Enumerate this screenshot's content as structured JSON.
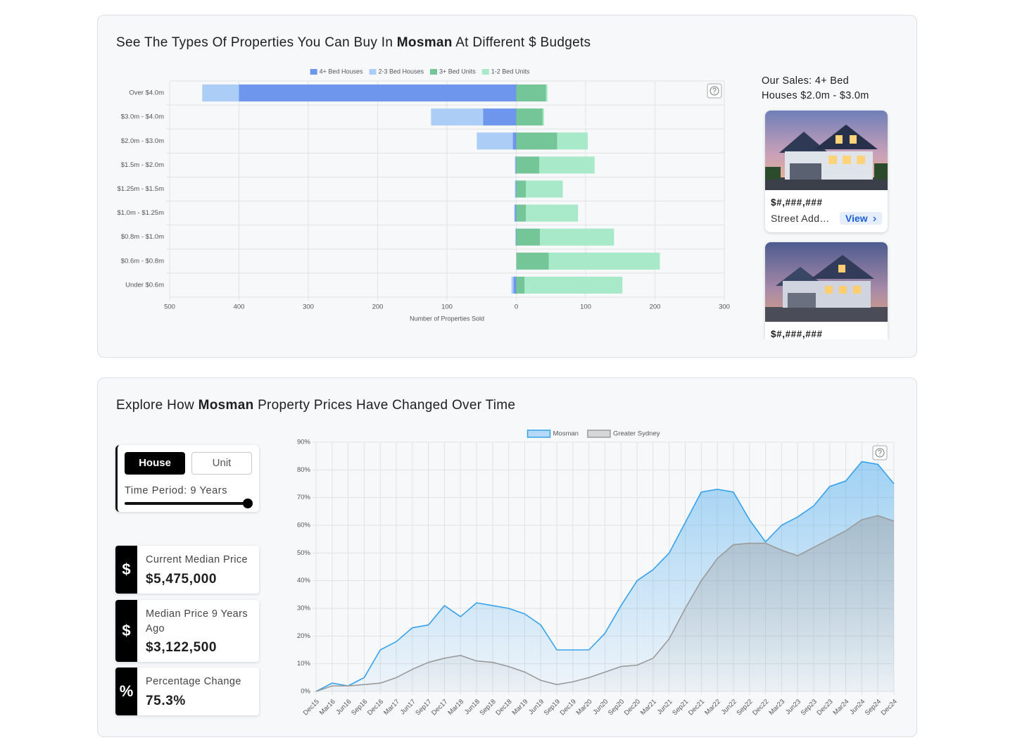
{
  "section_budgets": {
    "title_prefix": "See The Types Of Properties You Can Buy In",
    "title_location": "Mosman",
    "title_suffix": "At Different $ Budgets"
  },
  "sales_panel": {
    "heading": "Our Sales: 4+ Bed Houses $2.0m - $3.0m",
    "listings": [
      {
        "price": "$#,###,###",
        "address": "Street Add…",
        "action": "View"
      },
      {
        "price": "$#,###,###"
      }
    ]
  },
  "section_prices": {
    "title_prefix": "Explore How",
    "title_location": "Mosman",
    "title_suffix": "Property Prices Have Changed Over Time"
  },
  "controls": {
    "buttons": [
      "House",
      "Unit"
    ],
    "time_period": "Time Period: 9 Years"
  },
  "stats": [
    {
      "icon": "$",
      "label": "Current Median Price",
      "value": "$5,475,000"
    },
    {
      "icon": "$",
      "label": "Median Price 9 Years Ago",
      "value": "$3,122,500"
    },
    {
      "icon": "%",
      "label": "Percentage Change",
      "value": "75.3%"
    }
  ],
  "chart_data": [
    {
      "type": "bar",
      "orientation": "horizontal",
      "stacked": true,
      "legend": "top",
      "grid": true,
      "categories": [
        "Over $4.0m",
        "$3.0m - $4.0m",
        "$2.0m - $3.0m",
        "$1.5m - $2.0m",
        "$1.25m - $1.5m",
        "$1.0m - $1.25m",
        "$0.8m - $1.0m",
        "$0.6m - $0.8m",
        "Under $0.6m"
      ],
      "series": [
        {
          "name": "4+ Bed Houses",
          "color": "#6d96ec",
          "values": [
            -400,
            -48,
            -5,
            -1,
            -1,
            -2,
            -1,
            0,
            -4
          ]
        },
        {
          "name": "2-3 Bed Houses",
          "color": "#accdf5",
          "values": [
            -53,
            -75,
            -52,
            -1,
            -1,
            -1,
            0,
            0,
            -3
          ]
        },
        {
          "name": "3+ Bed Units",
          "color": "#74c698",
          "values": [
            43,
            38,
            59,
            33,
            14,
            14,
            34,
            47,
            12
          ]
        },
        {
          "name": "1-2 Bed Units",
          "color": "#a7e9c8",
          "values": [
            2,
            2,
            44,
            80,
            53,
            75,
            107,
            160,
            141
          ]
        }
      ],
      "xlim": [
        -500,
        300
      ],
      "xticks": [
        {
          "value": -500,
          "label": "500"
        },
        {
          "value": -400,
          "label": "400"
        },
        {
          "value": -300,
          "label": "300"
        },
        {
          "value": -200,
          "label": "200"
        },
        {
          "value": -100,
          "label": "100"
        },
        0,
        100,
        200,
        300
      ],
      "xlabel": "Number of Properties Sold"
    },
    {
      "type": "line",
      "area": true,
      "legend": "top",
      "grid": true,
      "categories": [
        "Dec15",
        "Mar16",
        "Jun16",
        "Sep16",
        "Dec16",
        "Mar17",
        "Jun17",
        "Sep17",
        "Dec17",
        "Mar18",
        "Jun18",
        "Sep18",
        "Dec18",
        "Mar19",
        "Jun19",
        "Sep19",
        "Dec19",
        "Mar20",
        "Jun20",
        "Sep20",
        "Dec20",
        "Mar21",
        "Jun21",
        "Sep21",
        "Dec21",
        "Mar22",
        "Jun22",
        "Sep22",
        "Dec22",
        "Mar23",
        "Jun23",
        "Sep23",
        "Dec23",
        "Mar24",
        "Jun24",
        "Sep24",
        "Dec24"
      ],
      "series": [
        {
          "name": "Mosman",
          "color": "#36a2eb",
          "values": [
            0,
            3,
            2,
            5,
            15,
            18,
            23,
            24,
            31,
            27,
            32,
            31,
            30,
            28,
            24,
            15,
            15,
            15,
            21,
            31,
            40,
            44,
            50,
            61,
            72,
            73,
            72,
            62,
            54,
            60,
            63,
            67,
            74,
            76,
            83,
            82,
            75
          ]
        },
        {
          "name": "Greater Sydney",
          "color": "#9a9a9a",
          "values": [
            0,
            2,
            2,
            2.5,
            3,
            5,
            8,
            10.5,
            12,
            13,
            11,
            10.5,
            9,
            7,
            4,
            2.5,
            3.5,
            5,
            7,
            9,
            9.5,
            12,
            19,
            30,
            40,
            48,
            53,
            53.5,
            53.5,
            51,
            49,
            52,
            55,
            58,
            62,
            63.5,
            61.5
          ]
        }
      ],
      "ylim": [
        0,
        90
      ],
      "yticks": [
        {
          "value": 0,
          "label": "0%"
        },
        {
          "value": 10,
          "label": "10%"
        },
        {
          "value": 20,
          "label": "20%"
        },
        {
          "value": 30,
          "label": "30%"
        },
        {
          "value": 40,
          "label": "40%"
        },
        {
          "value": 50,
          "label": "50%"
        },
        {
          "value": 60,
          "label": "60%"
        },
        {
          "value": 70,
          "label": "70%"
        },
        {
          "value": 80,
          "label": "80%"
        },
        {
          "value": 90,
          "label": "90%"
        }
      ]
    }
  ]
}
